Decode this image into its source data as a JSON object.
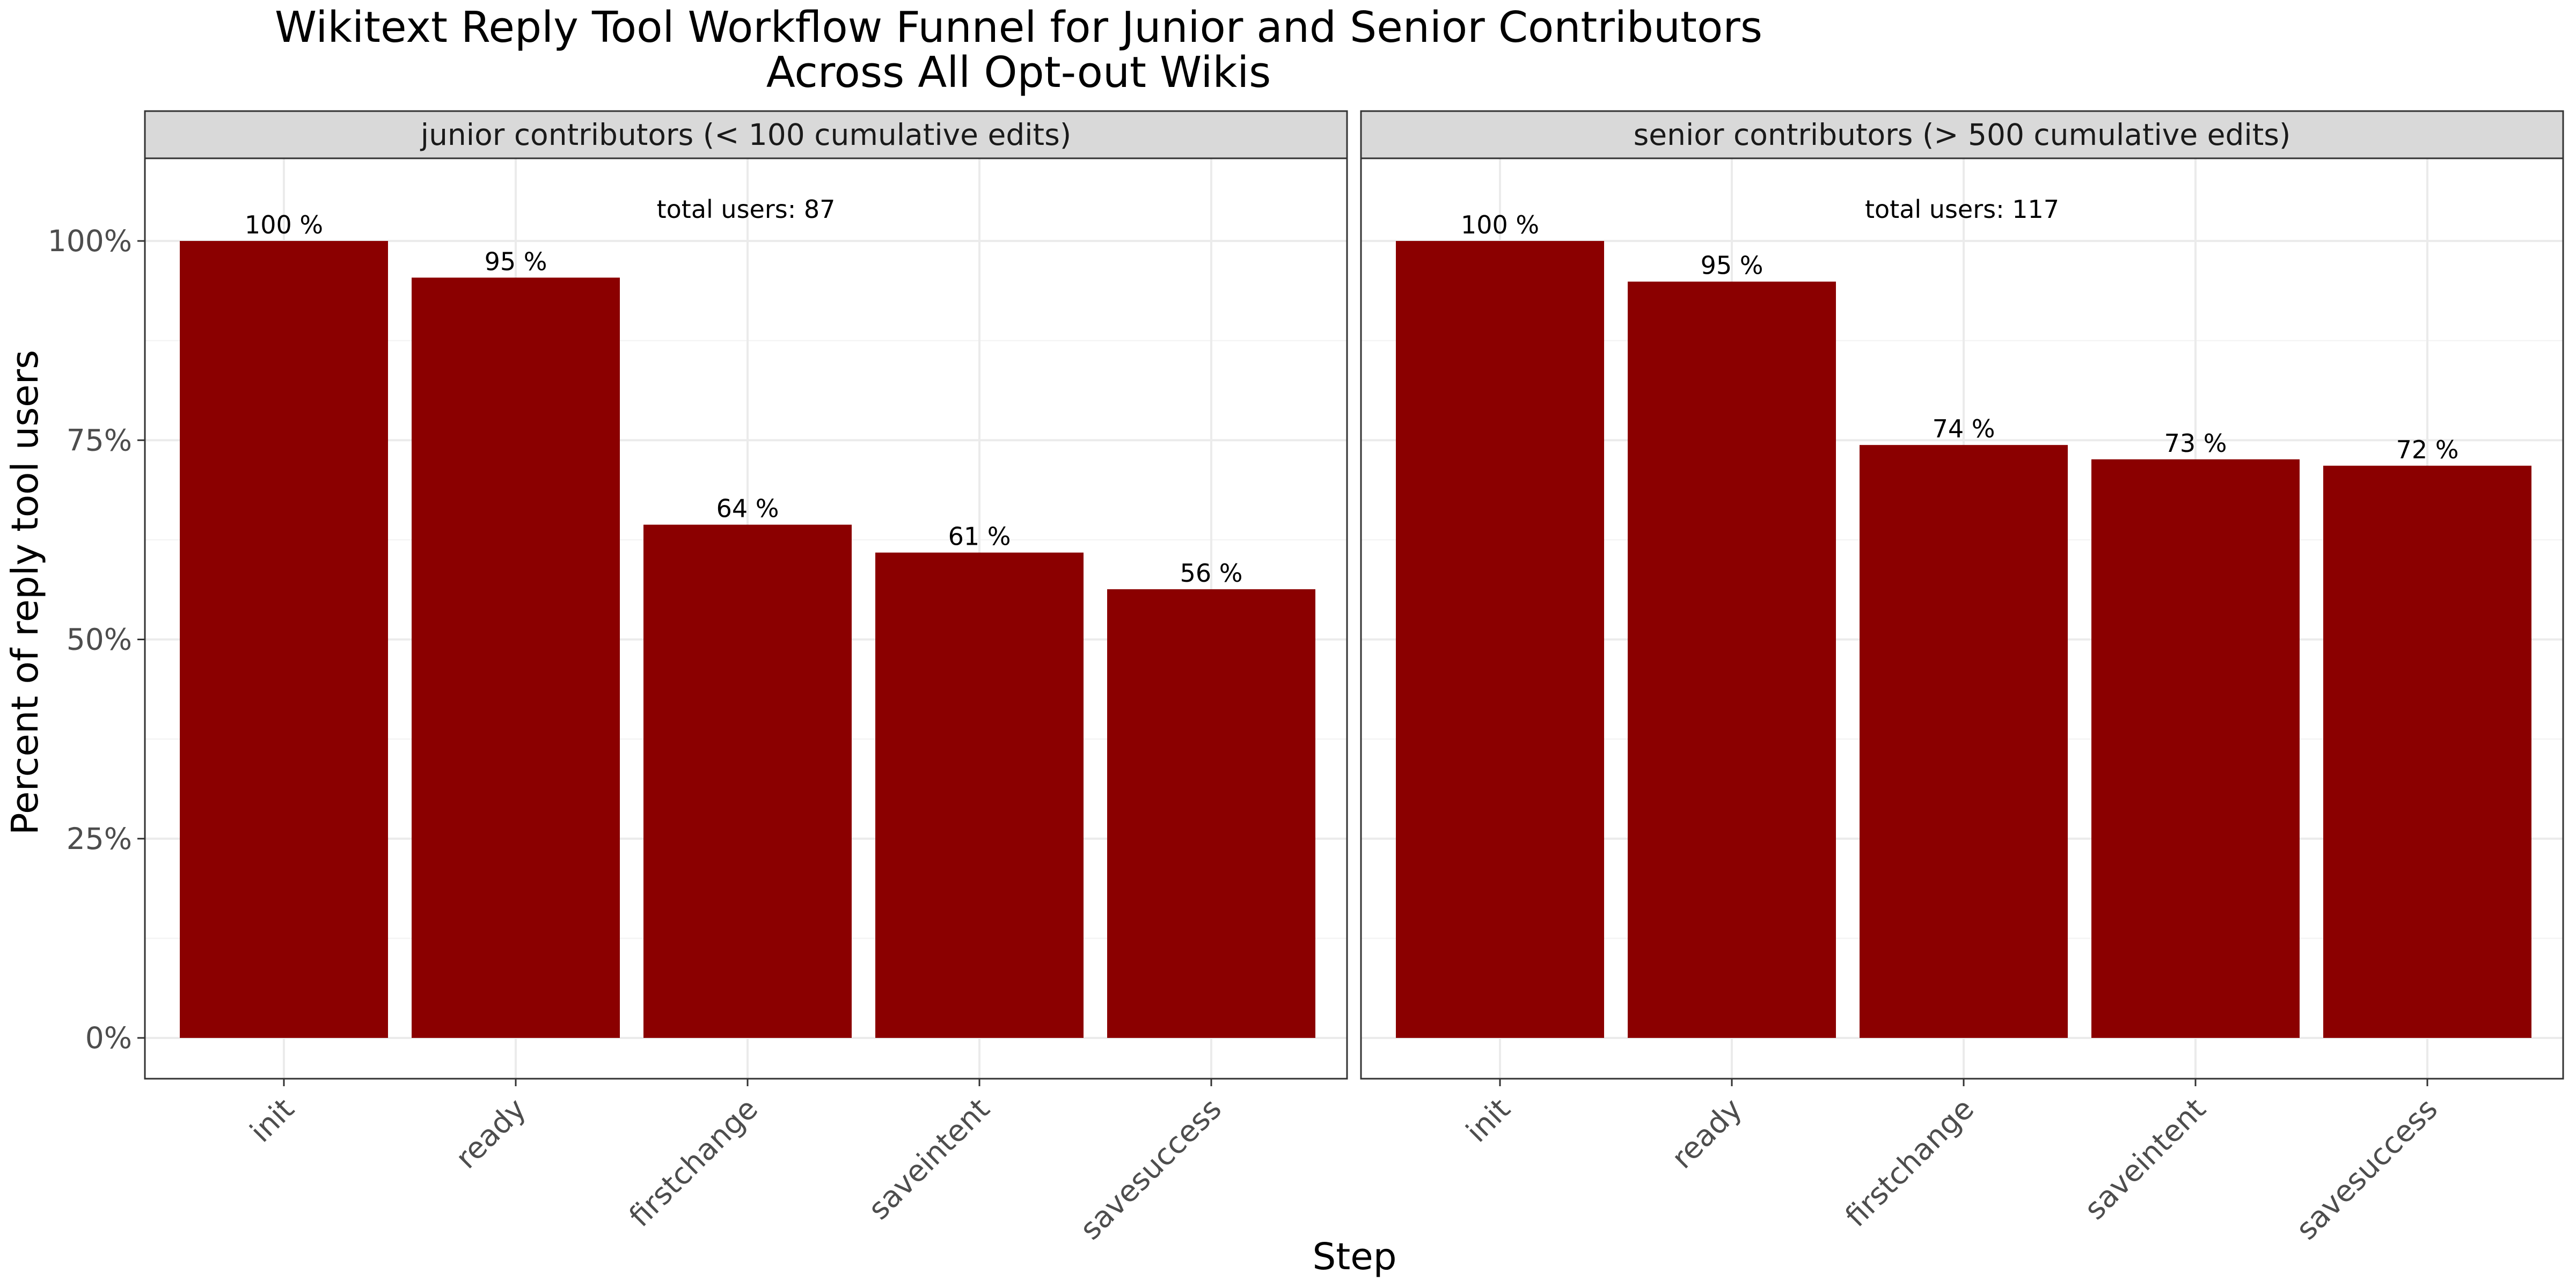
{
  "chart_data": {
    "type": "bar",
    "title": [
      "Wikitext Reply Tool Workflow Funnel for Junior and Senior Contributors",
      "Across All Opt-out Wikis"
    ],
    "xlabel": "Step",
    "ylabel": "Percent of reply tool users",
    "ylim": [
      0,
      1.1
    ],
    "y_ticks": [
      0,
      0.25,
      0.5,
      0.75,
      1.0
    ],
    "y_tick_labels": [
      "0%",
      "25%",
      "50%",
      "75%",
      "100%"
    ],
    "categories": [
      "init",
      "ready",
      "firstchange",
      "saveintent",
      "savesuccess"
    ],
    "grid": true,
    "bar_color": "#8B0000",
    "strip_color": "#D9D9D9",
    "facets": [
      {
        "strip": "junior contributors (< 100 cumulative edits)",
        "annotation": "total users: 87",
        "values": [
          1.0,
          0.954,
          0.644,
          0.609,
          0.563
        ],
        "labels": [
          "100 %",
          "95 %",
          "64 %",
          "61 %",
          "56 %"
        ]
      },
      {
        "strip": "senior contributors (> 500 cumulative edits)",
        "annotation": "total users: 117",
        "values": [
          1.0,
          0.949,
          0.744,
          0.726,
          0.718
        ],
        "labels": [
          "100 %",
          "95 %",
          "74 %",
          "73 %",
          "72 %"
        ]
      }
    ]
  }
}
